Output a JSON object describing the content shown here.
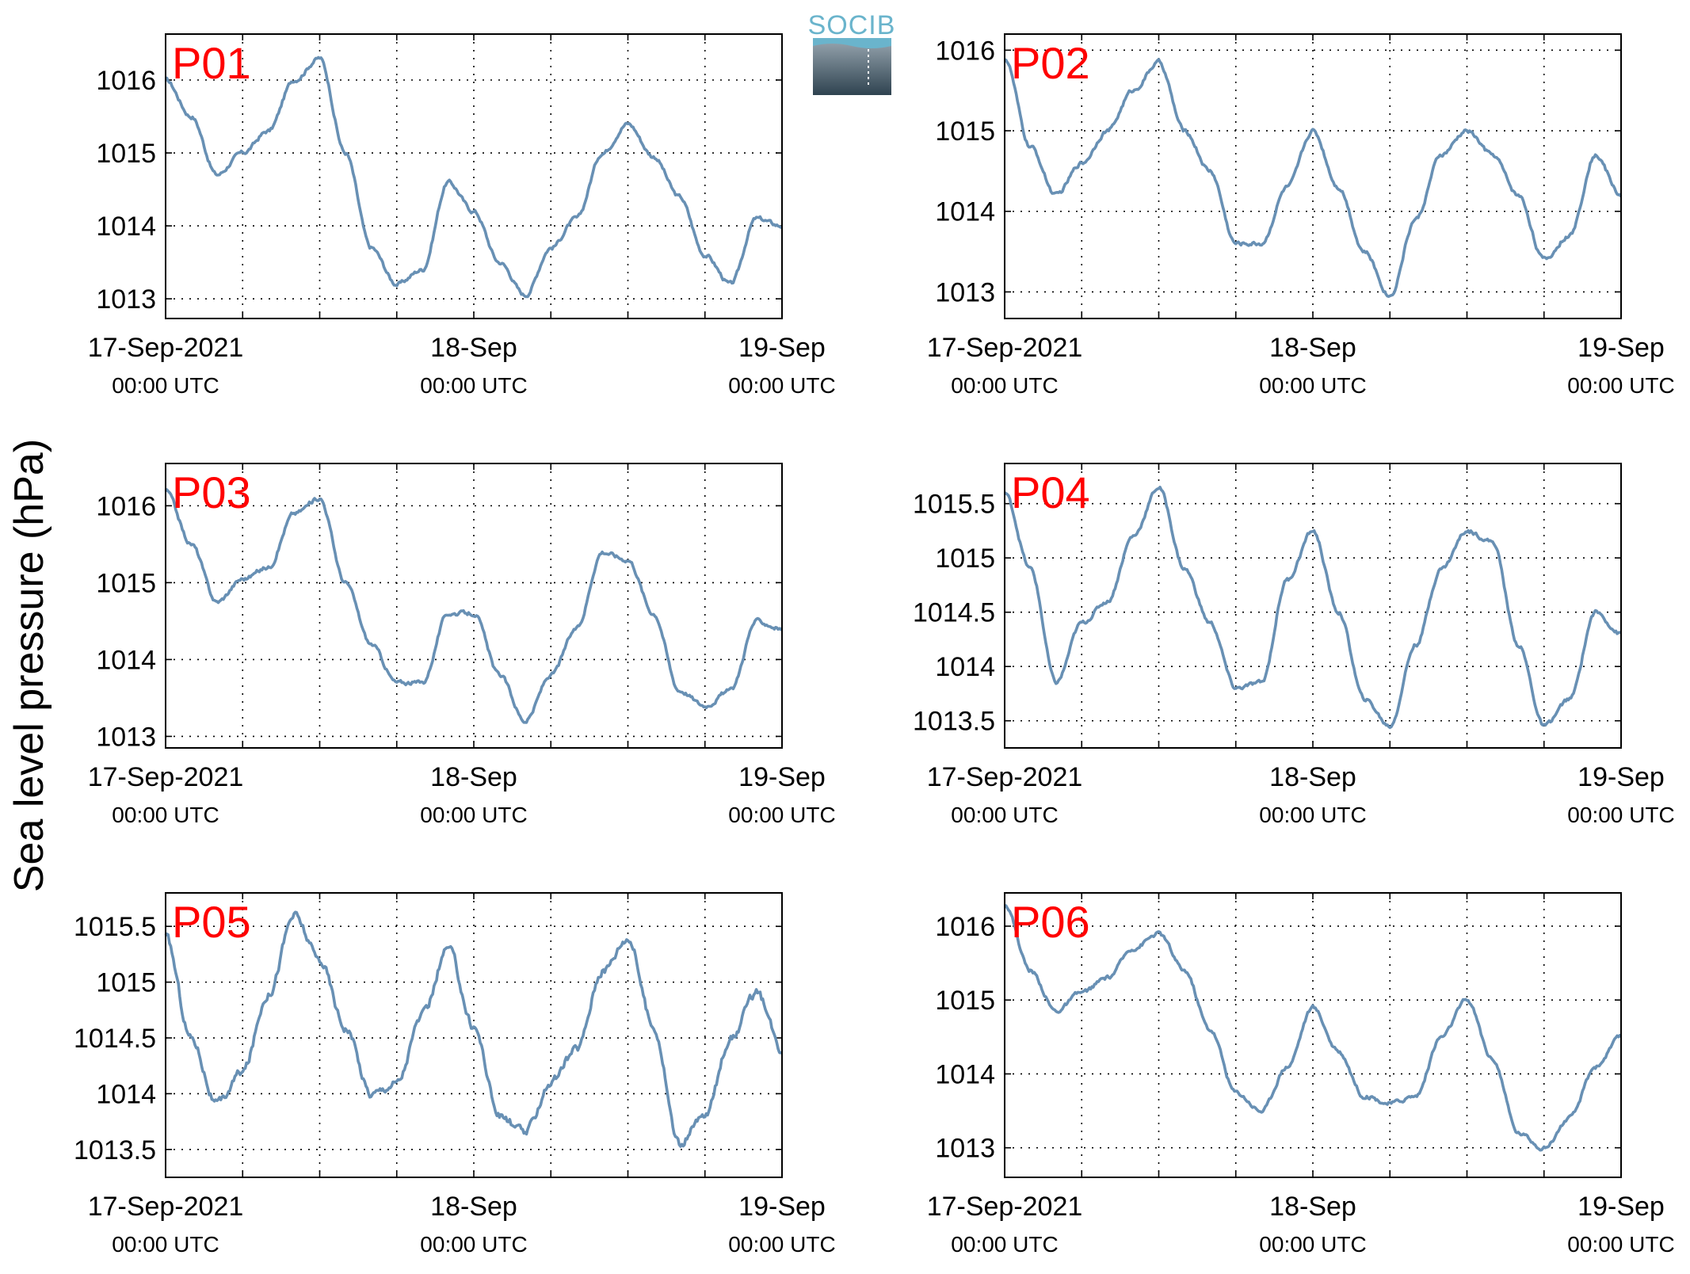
{
  "figure": {
    "ylabel": "Sea level pressure (hPa)",
    "logo_text": "SOCIB",
    "series_color": "#6890b4",
    "panel_label_color": "#ff0000"
  },
  "chart_data": [
    {
      "type": "line",
      "name": "P01",
      "x_range": [
        "2021-09-17T00:00",
        "2021-09-19T00:00"
      ],
      "ylim": [
        1012.73,
        1016.63
      ],
      "yticks": [
        1013,
        1014,
        1015,
        1016
      ],
      "ytick_labels": [
        "1013",
        "1014",
        "1015",
        "1016"
      ],
      "xtick_labels": [
        {
          "date": "17-Sep-2021",
          "time": "00:00 UTC"
        },
        {
          "date": "18-Sep",
          "time": "00:00 UTC"
        },
        {
          "date": "19-Sep",
          "time": "00:00 UTC"
        }
      ],
      "grid": true,
      "x_hours": [
        0,
        2,
        4,
        6,
        8,
        10,
        12,
        14,
        16,
        18,
        20,
        22,
        24,
        26,
        28,
        30,
        32,
        34,
        36,
        38,
        40,
        42,
        44,
        46,
        48
      ],
      "values": [
        1016.0,
        1015.5,
        1014.7,
        1015.0,
        1015.3,
        1016.0,
        1016.3,
        1015.0,
        1013.7,
        1013.2,
        1013.4,
        1014.6,
        1014.2,
        1013.5,
        1013.05,
        1013.7,
        1014.1,
        1015.0,
        1015.4,
        1014.95,
        1014.4,
        1013.6,
        1013.2,
        1014.1,
        1014.0
      ]
    },
    {
      "type": "line",
      "name": "P02",
      "x_range": [
        "2021-09-17T00:00",
        "2021-09-19T00:00"
      ],
      "ylim": [
        1012.67,
        1016.2
      ],
      "yticks": [
        1013,
        1014,
        1015,
        1016
      ],
      "ytick_labels": [
        "1013",
        "1014",
        "1015",
        "1016"
      ],
      "xtick_labels": [
        {
          "date": "17-Sep-2021",
          "time": "00:00 UTC"
        },
        {
          "date": "18-Sep",
          "time": "00:00 UTC"
        },
        {
          "date": "19-Sep",
          "time": "00:00 UTC"
        }
      ],
      "grid": true,
      "x_hours": [
        0,
        2,
        4,
        6,
        8,
        10,
        12,
        14,
        16,
        18,
        20,
        22,
        24,
        26,
        28,
        30,
        32,
        34,
        36,
        38,
        40,
        42,
        44,
        46,
        48
      ],
      "values": [
        1015.9,
        1014.8,
        1014.2,
        1014.6,
        1015.0,
        1015.5,
        1015.85,
        1015.0,
        1014.5,
        1013.6,
        1013.6,
        1014.3,
        1015.0,
        1014.3,
        1013.5,
        1012.95,
        1013.9,
        1014.7,
        1015.0,
        1014.7,
        1014.2,
        1013.4,
        1013.7,
        1014.7,
        1014.2
      ]
    },
    {
      "type": "line",
      "name": "P03",
      "x_range": [
        "2021-09-17T00:00",
        "2021-09-19T00:00"
      ],
      "ylim": [
        1012.85,
        1016.55
      ],
      "yticks": [
        1013,
        1014,
        1015,
        1016
      ],
      "ytick_labels": [
        "1013",
        "1014",
        "1015",
        "1016"
      ],
      "xtick_labels": [
        {
          "date": "17-Sep-2021",
          "time": "00:00 UTC"
        },
        {
          "date": "18-Sep",
          "time": "00:00 UTC"
        },
        {
          "date": "19-Sep",
          "time": "00:00 UTC"
        }
      ],
      "grid": true,
      "x_hours": [
        0,
        2,
        4,
        6,
        8,
        10,
        12,
        14,
        16,
        18,
        20,
        22,
        24,
        26,
        28,
        30,
        32,
        34,
        36,
        38,
        40,
        42,
        44,
        46,
        48
      ],
      "values": [
        1016.2,
        1015.5,
        1014.75,
        1015.05,
        1015.2,
        1015.9,
        1016.1,
        1015.0,
        1014.2,
        1013.7,
        1013.7,
        1014.6,
        1014.6,
        1013.8,
        1013.2,
        1013.8,
        1014.4,
        1015.4,
        1015.3,
        1014.6,
        1013.6,
        1013.4,
        1013.6,
        1014.5,
        1014.4
      ]
    },
    {
      "type": "line",
      "name": "P04",
      "x_range": [
        "2021-09-17T00:00",
        "2021-09-19T00:00"
      ],
      "ylim": [
        1013.25,
        1015.87
      ],
      "yticks": [
        1013.5,
        1014,
        1014.5,
        1015,
        1015.5
      ],
      "ytick_labels": [
        "1013.5",
        "1014",
        "1014.5",
        "1015",
        "1015.5"
      ],
      "xtick_labels": [
        {
          "date": "17-Sep-2021",
          "time": "00:00 UTC"
        },
        {
          "date": "18-Sep",
          "time": "00:00 UTC"
        },
        {
          "date": "19-Sep",
          "time": "00:00 UTC"
        }
      ],
      "grid": true,
      "x_hours": [
        0,
        2,
        4,
        6,
        8,
        10,
        12,
        14,
        16,
        18,
        20,
        22,
        24,
        26,
        28,
        30,
        32,
        34,
        36,
        38,
        40,
        42,
        44,
        46,
        48
      ],
      "values": [
        1015.6,
        1014.9,
        1013.85,
        1014.4,
        1014.6,
        1015.2,
        1015.65,
        1014.9,
        1014.4,
        1013.8,
        1013.85,
        1014.8,
        1015.25,
        1014.5,
        1013.7,
        1013.45,
        1014.2,
        1014.9,
        1015.25,
        1015.15,
        1014.2,
        1013.45,
        1013.7,
        1014.5,
        1014.3
      ]
    },
    {
      "type": "line",
      "name": "P05",
      "x_range": [
        "2021-09-17T00:00",
        "2021-09-19T00:00"
      ],
      "ylim": [
        1013.25,
        1015.8
      ],
      "yticks": [
        1013.5,
        1014,
        1014.5,
        1015,
        1015.5
      ],
      "ytick_labels": [
        "1013.5",
        "1014",
        "1014.5",
        "1015",
        "1015.5"
      ],
      "xtick_labels": [
        {
          "date": "17-Sep-2021",
          "time": "00:00 UTC"
        },
        {
          "date": "18-Sep",
          "time": "00:00 UTC"
        },
        {
          "date": "19-Sep",
          "time": "00:00 UTC"
        }
      ],
      "grid": true,
      "x_hours": [
        0,
        2,
        4,
        6,
        8,
        10,
        12,
        14,
        16,
        18,
        20,
        22,
        24,
        26,
        28,
        30,
        32,
        34,
        36,
        38,
        40,
        42,
        44,
        46,
        48
      ],
      "values": [
        1015.4,
        1014.5,
        1013.9,
        1014.2,
        1014.9,
        1015.6,
        1015.2,
        1014.6,
        1014.0,
        1014.1,
        1014.7,
        1015.3,
        1014.6,
        1013.8,
        1013.65,
        1014.1,
        1014.4,
        1015.1,
        1015.4,
        1014.6,
        1013.55,
        1013.8,
        1014.5,
        1014.9,
        1014.4
      ]
    },
    {
      "type": "line",
      "name": "P06",
      "x_range": [
        "2021-09-17T00:00",
        "2021-09-19T00:00"
      ],
      "ylim": [
        1012.6,
        1016.45
      ],
      "yticks": [
        1013,
        1014,
        1015,
        1016
      ],
      "ytick_labels": [
        "1013",
        "1014",
        "1015",
        "1016"
      ],
      "xtick_labels": [
        {
          "date": "17-Sep-2021",
          "time": "00:00 UTC"
        },
        {
          "date": "18-Sep",
          "time": "00:00 UTC"
        },
        {
          "date": "19-Sep",
          "time": "00:00 UTC"
        }
      ],
      "grid": true,
      "x_hours": [
        0,
        2,
        4,
        6,
        8,
        10,
        12,
        14,
        16,
        18,
        20,
        22,
        24,
        26,
        28,
        30,
        32,
        34,
        36,
        38,
        40,
        42,
        44,
        46,
        48
      ],
      "values": [
        1016.3,
        1015.4,
        1014.85,
        1015.1,
        1015.3,
        1015.7,
        1015.9,
        1015.4,
        1014.6,
        1013.75,
        1013.5,
        1014.1,
        1014.9,
        1014.3,
        1013.7,
        1013.6,
        1013.7,
        1014.5,
        1015.0,
        1014.2,
        1013.2,
        1013.0,
        1013.4,
        1014.1,
        1014.5
      ]
    }
  ]
}
